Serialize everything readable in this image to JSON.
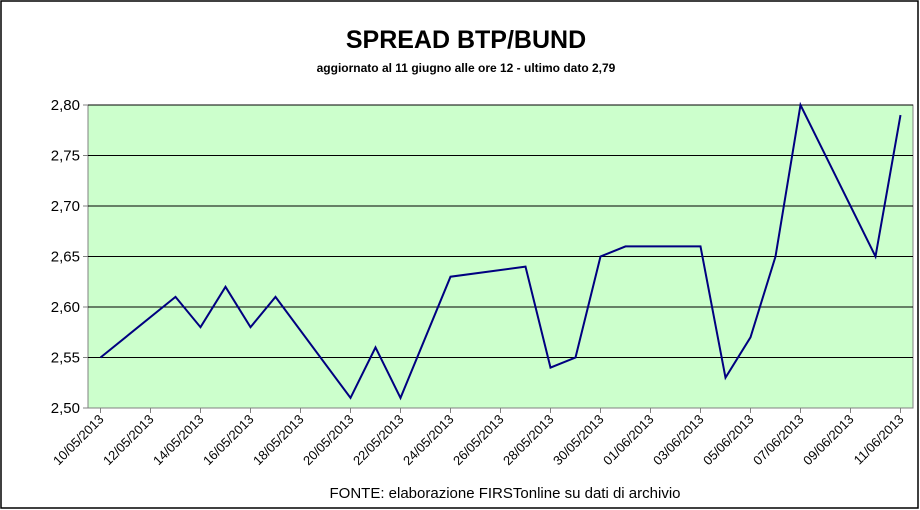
{
  "chart_data": {
    "type": "line",
    "title": "SPREAD  BTP/BUND",
    "subtitle": "aggiornato al 11 giugno alle ore 12 -  ultimo dato 2,79",
    "source": "FONTE: elaborazione FIRSTonline su dati di archivio",
    "x": [
      "10/05/2013",
      "13/05/2013",
      "14/05/2013",
      "15/05/2013",
      "16/05/2013",
      "17/05/2013",
      "20/05/2013",
      "21/05/2013",
      "22/05/2013",
      "24/05/2013",
      "27/05/2013",
      "28/05/2013",
      "29/05/2013",
      "30/05/2013",
      "31/05/2013",
      "03/06/2013",
      "04/06/2013",
      "05/06/2013",
      "06/06/2013",
      "07/06/2013",
      "10/06/2013",
      "11/06/2013"
    ],
    "series": [
      {
        "name": "Spread BTP/Bund",
        "color": "#000080",
        "values": [
          2.55,
          2.61,
          2.58,
          2.62,
          2.58,
          2.61,
          2.51,
          2.56,
          2.51,
          2.63,
          2.64,
          2.54,
          2.55,
          2.65,
          2.66,
          2.66,
          2.53,
          2.57,
          2.65,
          2.8,
          2.65,
          2.79
        ]
      }
    ],
    "xlim": [
      "10/05/2013",
      "11/06/2013"
    ],
    "xticks": [
      "10/05/2013",
      "12/05/2013",
      "14/05/2013",
      "16/05/2013",
      "18/05/2013",
      "20/05/2013",
      "22/05/2013",
      "24/05/2013",
      "26/05/2013",
      "28/05/2013",
      "30/05/2013",
      "01/06/2013",
      "03/06/2013",
      "05/06/2013",
      "07/06/2013",
      "09/06/2013",
      "11/06/2013"
    ],
    "ylim": [
      2.5,
      2.8
    ],
    "yticks": [
      {
        "value": 2.5,
        "label": "2,50"
      },
      {
        "value": 2.55,
        "label": "2,55"
      },
      {
        "value": 2.6,
        "label": "2,60"
      },
      {
        "value": 2.65,
        "label": "2,65"
      },
      {
        "value": 2.7,
        "label": "2,70"
      },
      {
        "value": 2.75,
        "label": "2,75"
      },
      {
        "value": 2.8,
        "label": "2,80"
      }
    ],
    "grid": true,
    "plot_background": "#ccffcc"
  }
}
